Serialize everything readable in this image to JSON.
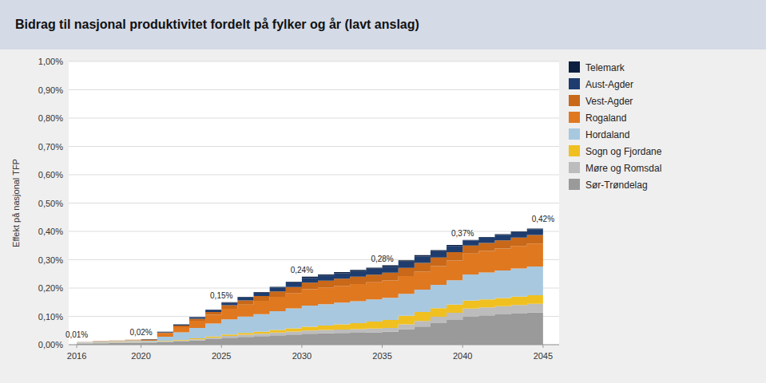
{
  "chart_data": {
    "type": "area",
    "stacked": true,
    "line_style": "step",
    "title": "Bidrag til nasjonal produktivitet fordelt på fylker og år (lavt anslag)",
    "y_label": "Effekt på nasjonal TFP",
    "x": [
      2016,
      2017,
      2018,
      2019,
      2020,
      2021,
      2022,
      2023,
      2024,
      2025,
      2026,
      2027,
      2028,
      2029,
      2030,
      2031,
      2032,
      2033,
      2034,
      2035,
      2036,
      2037,
      2038,
      2039,
      2040,
      2041,
      2042,
      2043,
      2044,
      2045
    ],
    "series": [
      {
        "name": "Sør-Trøndelag",
        "color": "#9a9a9a",
        "values": [
          0.004,
          0.005,
          0.006,
          0.007,
          0.007619,
          0.0092,
          0.012,
          0.0153125,
          0.01984,
          0.024706,
          0.027541,
          0.030061,
          0.033209,
          0.035713,
          0.0384,
          0.040372,
          0.041228,
          0.04224,
          0.043748,
          0.045559,
          0.055015,
          0.064256,
          0.076113,
          0.087549,
          0.0999,
          0.103292,
          0.106716,
          0.110174,
          0.113663,
          0.117185
        ]
      },
      {
        "name": "Møre og Romsdal",
        "color": "#bcbcbc",
        "values": [
          0.002,
          0.0025,
          0.003,
          0.0035,
          0.001905,
          0.0023,
          0.003,
          0.003828,
          0.00496,
          0.006176,
          0.007344,
          0.008455,
          0.009488,
          0.010617,
          0.01152,
          0.011535,
          0.012464,
          0.01248,
          0.013315,
          0.013288,
          0.016505,
          0.019365,
          0.022386,
          0.025272,
          0.02775,
          0.028429,
          0.029104,
          0.029777,
          0.030446,
          0.031111
        ]
      },
      {
        "name": "Sogn og Fjordane",
        "color": "#f0c020",
        "values": [
          0.001,
          0.00125,
          0.0015,
          0.00175,
          0.000952,
          0.001533,
          0.00225,
          0.0030625,
          0.004133,
          0.005294,
          0.006426,
          0.007515,
          0.009488,
          0.011583,
          0.01344,
          0.01538,
          0.018217,
          0.02112,
          0.024727,
          0.028475,
          0.030258,
          0.031688,
          0.030445,
          0.028882,
          0.02775,
          0.028429,
          0.029104,
          0.029777,
          0.030446,
          0.031111
        ]
      },
      {
        "name": "Hordaland",
        "color": "#a8c8e0",
        "values": [
          0.002,
          0.0025,
          0.003,
          0.0035,
          0.00381,
          0.015333,
          0.02625,
          0.03675,
          0.045467,
          0.052941,
          0.057836,
          0.062,
          0.066419,
          0.070461,
          0.07488,
          0.075938,
          0.076704,
          0.07776,
          0.077986,
          0.077831,
          0.077938,
          0.07922,
          0.082381,
          0.085744,
          0.0925,
          0.094763,
          0.097015,
          0.099256,
          0.101485,
          0.103704
        ]
      },
      {
        "name": "Rogaland",
        "color": "#e07820",
        "values": [
          0.001,
          0.00125,
          0.0015,
          0.00175,
          0.002857,
          0.0115,
          0.01875,
          0.025266,
          0.031413,
          0.037941,
          0.04223,
          0.04697,
          0.050288,
          0.054052,
          0.0576,
          0.058636,
          0.059446,
          0.06048,
          0.060867,
          0.061695,
          0.062351,
          0.063376,
          0.066263,
          0.069497,
          0.074,
          0.07581,
          0.077612,
          0.079404,
          0.081188,
          0.082963
        ]
      },
      {
        "name": "Vest-Agder",
        "color": "#c86818",
        "values": [
          0,
          0,
          0,
          0,
          0.000952,
          0.003067,
          0.00525,
          0.007656,
          0.00992,
          0.012353,
          0.014689,
          0.016909,
          0.018977,
          0.021235,
          0.02304,
          0.024031,
          0.024929,
          0.02592,
          0.026629,
          0.027525,
          0.029342,
          0.030808,
          0.030445,
          0.029785,
          0.02775,
          0.028429,
          0.029104,
          0.029777,
          0.030446,
          0.031111
        ]
      },
      {
        "name": "Aust-Agder",
        "color": "#1e3d6e",
        "values": [
          0,
          0,
          0,
          0,
          0.000952,
          0.0023,
          0.00375,
          0.005359,
          0.00744,
          0.008824,
          0.010098,
          0.012212,
          0.014233,
          0.016409,
          0.01728,
          0.018264,
          0.019176,
          0.02016,
          0.020923,
          0.020881,
          0.022006,
          0.022886,
          0.022386,
          0.021662,
          0.0185,
          0.018953,
          0.019403,
          0.019851,
          0.020297,
          0.020741
        ]
      },
      {
        "name": "Telemark",
        "color": "#0d1f40",
        "values": [
          0,
          0,
          0,
          0,
          0.000952,
          0.000767,
          0.00075,
          0.000766,
          0.000827,
          0.001765,
          0.001836,
          0.001879,
          0.001898,
          0.00193,
          0.00384,
          0.003845,
          0.003835,
          0.00384,
          0.003804,
          0.004746,
          0.004585,
          0.004401,
          0.003582,
          0.00361,
          0.00185,
          0.001895,
          0.00194,
          0.001985,
          0.00203,
          0.002074
        ]
      }
    ],
    "xlim": [
      2015.5,
      2046
    ],
    "xticks": [
      2016,
      2020,
      2025,
      2030,
      2035,
      2040,
      2045
    ],
    "ylim": [
      0,
      1.0
    ],
    "yticks": [
      {
        "value": 0.0,
        "label": "0,00%"
      },
      {
        "value": 0.1,
        "label": "0,10%"
      },
      {
        "value": 0.2,
        "label": "0,20%"
      },
      {
        "value": 0.3,
        "label": "0,30%"
      },
      {
        "value": 0.4,
        "label": "0,40%"
      },
      {
        "value": 0.5,
        "label": "0,50%"
      },
      {
        "value": 0.6,
        "label": "0,60%"
      },
      {
        "value": 0.7,
        "label": "0,70%"
      },
      {
        "value": 0.8,
        "label": "0,80%"
      },
      {
        "value": 0.9,
        "label": "0,90%"
      },
      {
        "value": 1.0,
        "label": "1,00%"
      }
    ],
    "annotations": [
      {
        "x": 2016,
        "y": 0.01,
        "label": "0,01%"
      },
      {
        "x": 2020,
        "y": 0.02,
        "label": "0,02%"
      },
      {
        "x": 2025,
        "y": 0.15,
        "label": "0,15%"
      },
      {
        "x": 2030,
        "y": 0.24,
        "label": "0,24%"
      },
      {
        "x": 2035,
        "y": 0.28,
        "label": "0,28%"
      },
      {
        "x": 2040,
        "y": 0.37,
        "label": "0,37%"
      },
      {
        "x": 2045,
        "y": 0.42,
        "label": "0,42%"
      }
    ],
    "grid": true,
    "legend": "right"
  }
}
